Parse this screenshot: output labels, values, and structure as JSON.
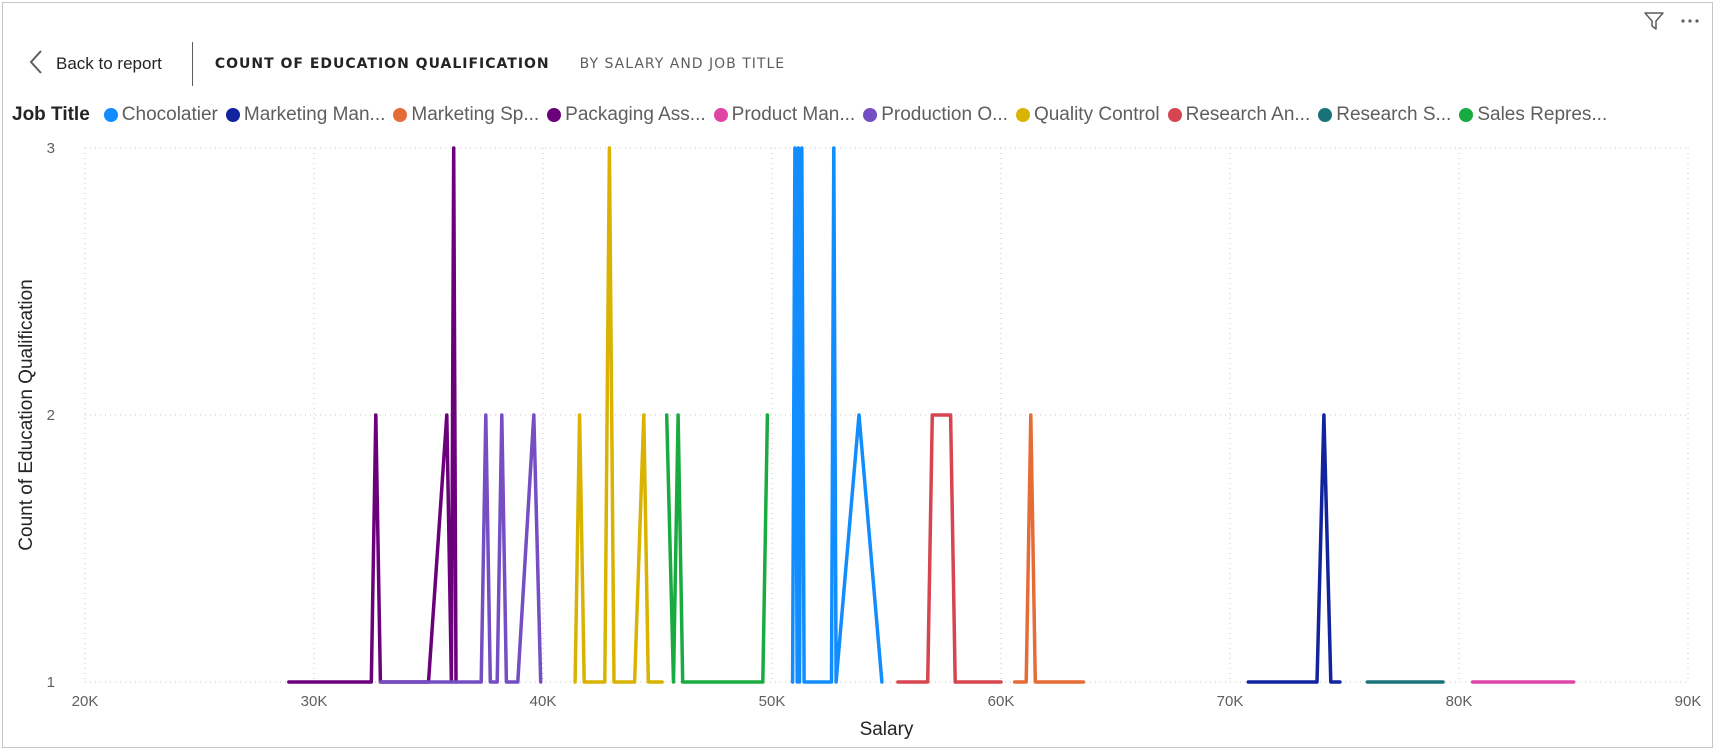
{
  "header": {
    "back_label": "Back to report",
    "title_main": "COUNT OF EDUCATION QUALIFICATION",
    "title_sub": "BY SALARY AND JOB TITLE"
  },
  "icons": {
    "filter": "filter-icon",
    "more": "more-options-icon",
    "back": "chevron-left-icon"
  },
  "legend": {
    "title": "Job Title",
    "items": [
      {
        "label": "Chocolatier",
        "color": "#118DFF"
      },
      {
        "label": "Marketing Man...",
        "color": "#12239E"
      },
      {
        "label": "Marketing Sp...",
        "color": "#E66C37"
      },
      {
        "label": "Packaging Ass...",
        "color": "#6B007B"
      },
      {
        "label": "Product Man...",
        "color": "#E044A7"
      },
      {
        "label": "Production O...",
        "color": "#744EC2"
      },
      {
        "label": "Quality Control",
        "color": "#D9B300"
      },
      {
        "label": "Research An...",
        "color": "#D64550"
      },
      {
        "label": "Research S...",
        "color": "#197278"
      },
      {
        "label": "Sales Repres...",
        "color": "#1AAB40"
      }
    ]
  },
  "chart_data": {
    "type": "line",
    "title": "Count of Education Qualification by Salary and Job Title",
    "xlabel": "Salary",
    "ylabel": "Count of Education Qualification",
    "xlim": [
      20000,
      90000
    ],
    "ylim": [
      1,
      3
    ],
    "x_ticks": [
      "20K",
      "30K",
      "40K",
      "50K",
      "60K",
      "70K",
      "80K",
      "90K"
    ],
    "y_ticks": [
      "1",
      "2",
      "3"
    ],
    "grid": true,
    "legend_position": "top",
    "series": [
      {
        "name": "Chocolatier",
        "color": "#118DFF",
        "x": [
          50900,
          51000,
          51100,
          51150,
          51200,
          51300,
          51400,
          52600,
          52700,
          52800,
          53800,
          54800
        ],
        "y": [
          1,
          3,
          1,
          3,
          1,
          3,
          1,
          1,
          3,
          1,
          2,
          1
        ]
      },
      {
        "name": "Marketing Man...",
        "color": "#12239E",
        "x": [
          70800,
          73800,
          74100,
          74400,
          74800
        ],
        "y": [
          1,
          1,
          2,
          1,
          1
        ]
      },
      {
        "name": "Marketing Sp...",
        "color": "#E66C37",
        "x": [
          60600,
          61100,
          61300,
          61500,
          63600
        ],
        "y": [
          1,
          1,
          2,
          1,
          1
        ]
      },
      {
        "name": "Packaging Ass...",
        "color": "#6B007B",
        "x": [
          28900,
          32500,
          32700,
          32900,
          35000,
          35800,
          36000,
          36100,
          36200
        ],
        "y": [
          1,
          1,
          2,
          1,
          1,
          2,
          1,
          3,
          1
        ]
      },
      {
        "name": "Product Man...",
        "color": "#E044A7",
        "x": [
          80600,
          85000
        ],
        "y": [
          1,
          1
        ]
      },
      {
        "name": "Production O...",
        "color": "#744EC2",
        "x": [
          32900,
          37300,
          37500,
          37700,
          38000,
          38200,
          38400,
          38900,
          39600,
          39900
        ],
        "y": [
          1,
          1,
          2,
          1,
          1,
          2,
          1,
          1,
          2,
          1
        ]
      },
      {
        "name": "Quality Control",
        "color": "#D9B300",
        "x": [
          41400,
          41600,
          41800,
          42700,
          42900,
          43100,
          44000,
          44400,
          44600,
          45200
        ],
        "y": [
          1,
          2,
          1,
          1,
          3,
          1,
          1,
          2,
          1,
          1
        ]
      },
      {
        "name": "Research An...",
        "color": "#D64550",
        "x": [
          55500,
          56800,
          57000,
          57800,
          58000,
          60000
        ],
        "y": [
          1,
          1,
          2,
          2,
          1,
          1
        ]
      },
      {
        "name": "Research S...",
        "color": "#197278",
        "x": [
          76000,
          79300
        ],
        "y": [
          1,
          1
        ]
      },
      {
        "name": "Sales Repres...",
        "color": "#1AAB40",
        "x": [
          45400,
          45700,
          45900,
          46100,
          46300,
          49600,
          49800
        ],
        "y": [
          2,
          1,
          2,
          1,
          1,
          1,
          2
        ]
      }
    ]
  }
}
